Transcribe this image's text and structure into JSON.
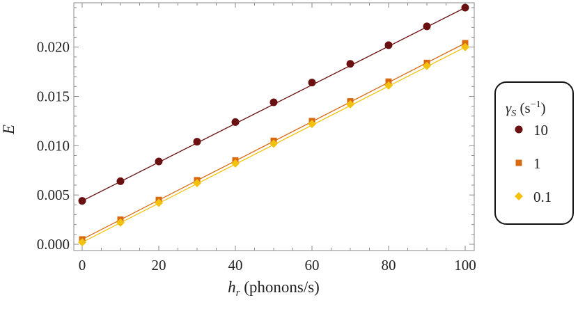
{
  "chart_data": {
    "type": "scatter",
    "xlabel_var": "h",
    "xlabel_sub": "r",
    "xlabel_unit": " (phonons/s)",
    "ylabel": "E",
    "xlim": [
      0,
      100
    ],
    "ylim": [
      0.0,
      0.024
    ],
    "x_ticks": [
      0,
      20,
      40,
      60,
      80,
      100
    ],
    "x_tick_labels": [
      "0",
      "20",
      "40",
      "60",
      "80",
      "100"
    ],
    "y_ticks": [
      0.0,
      0.005,
      0.01,
      0.015,
      0.02
    ],
    "y_tick_labels": [
      "0.000",
      "0.005",
      "0.010",
      "0.015",
      "0.020"
    ],
    "grid": false,
    "legend": {
      "position": "right",
      "title_var": "γ",
      "title_sub": "S",
      "title_unit_open": " (s",
      "title_unit_exp": "−1",
      "title_unit_close": ")"
    },
    "x": [
      0,
      10,
      20,
      30,
      40,
      50,
      60,
      70,
      80,
      90,
      100
    ],
    "series": [
      {
        "name": "10",
        "marker": "circle",
        "color": "#6b1010",
        "values": [
          0.0044,
          0.0064,
          0.0084,
          0.0104,
          0.0124,
          0.0144,
          0.0164,
          0.0183,
          0.0202,
          0.0221,
          0.024
        ],
        "fit": [
          0.0044,
          0.024
        ]
      },
      {
        "name": "1",
        "marker": "square",
        "color": "#d9690f",
        "values": [
          0.0005,
          0.0025,
          0.0045,
          0.0065,
          0.0085,
          0.0105,
          0.0125,
          0.0145,
          0.0165,
          0.0184,
          0.0204
        ],
        "fit": [
          0.0005,
          0.0204
        ]
      },
      {
        "name": "0.1",
        "marker": "diamond",
        "color": "#f2c20f",
        "values": [
          0.0002,
          0.0022,
          0.0042,
          0.0062,
          0.0082,
          0.0102,
          0.0122,
          0.0142,
          0.0161,
          0.0181,
          0.02
        ],
        "fit": [
          0.0002,
          0.02
        ]
      }
    ]
  }
}
